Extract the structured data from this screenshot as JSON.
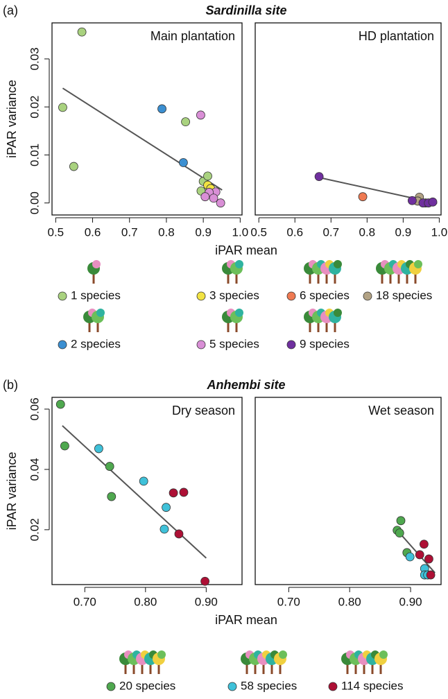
{
  "chart_data": [
    {
      "type": "scatter",
      "panel_label": "(a)",
      "site_title": "Sardinilla site",
      "title": "Main plantation",
      "xlabel": "iPAR mean",
      "ylabel": "iPAR variance",
      "xlim": [
        0.49,
        1.005
      ],
      "ylim": [
        -0.0025,
        0.0375
      ],
      "xticks": [
        0.5,
        0.6,
        0.7,
        0.8,
        0.9,
        {
          "value": 1.0,
          "label": "1.0"
        }
      ],
      "yticks": [
        {
          "value": 0,
          "label": "0.00"
        },
        0.01,
        0.02,
        0.03
      ],
      "series": [
        {
          "name": "1 species",
          "color": "#a9d27f",
          "x": [
            0.571,
            0.519,
            0.549,
            0.852,
            0.9,
            0.912,
            0.894
          ],
          "y": [
            0.0356,
            0.0199,
            0.0076,
            0.0169,
            0.0045,
            0.0056,
            0.0025
          ]
        },
        {
          "name": "2 species",
          "color": "#3b8fd1",
          "x": [
            0.788,
            0.846
          ],
          "y": [
            0.0196,
            0.0084
          ]
        },
        {
          "name": "3 species",
          "color": "#f2e343",
          "x": [
            0.912,
            0.92
          ],
          "y": [
            0.0037,
            0.003
          ]
        },
        {
          "name": "5 species",
          "color": "#d98fd6",
          "x": [
            0.893,
            0.934,
            0.916,
            0.905,
            0.928,
            0.947
          ],
          "y": [
            0.0183,
            0.0023,
            0.0022,
            0.0013,
            0.001,
            0.0
          ]
        }
      ],
      "trend": {
        "x": [
          0.519,
          0.951
        ],
        "y": [
          0.0239,
          0.0027
        ]
      }
    },
    {
      "type": "scatter",
      "title": "HD plantation",
      "xlim": [
        0.49,
        1.005
      ],
      "ylim": [
        -0.0025,
        0.0375
      ],
      "xticks": [
        0.5,
        0.6,
        0.7,
        0.8,
        0.9,
        {
          "value": 1.0,
          "label": "1.0"
        }
      ],
      "series": [
        {
          "name": "6 species",
          "color": "#ef7a52",
          "x": [
            0.788
          ],
          "y": [
            0.0013
          ]
        },
        {
          "name": "18 species",
          "color": "#b2a284",
          "x": [
            0.945,
            0.94,
            0.962
          ],
          "y": [
            0.0012,
            0.0004,
            0.0
          ]
        },
        {
          "name": "9 species",
          "color": "#6f2f9e",
          "x": [
            0.667,
            0.925,
            0.955,
            0.97,
            0.982
          ],
          "y": [
            0.0055,
            0.0005,
            0.0,
            0.0,
            0.0002
          ]
        }
      ],
      "trend": {
        "x": [
          0.667,
          0.994
        ],
        "y": [
          0.0053,
          -0.0001
        ]
      }
    },
    {
      "type": "scatter",
      "panel_label": "(b)",
      "site_title": "Anhembi site",
      "title": "Dry season",
      "xlabel": "iPAR mean",
      "ylabel": "iPAR variance",
      "xlim": [
        0.646,
        0.959
      ],
      "ylim": [
        0.0018,
        0.0639
      ],
      "xticks": [
        {
          "value": 0.7,
          "label": "0.70"
        },
        {
          "value": 0.8,
          "label": "0.80"
        },
        {
          "value": 0.9,
          "label": "0.90"
        }
      ],
      "yticks": [
        0.02,
        0.04,
        0.06
      ],
      "series": [
        {
          "name": "20 species",
          "color": "#4fa84f",
          "x": [
            0.66,
            0.667,
            0.741,
            0.744
          ],
          "y": [
            0.0616,
            0.0478,
            0.041,
            0.031
          ]
        },
        {
          "name": "58 species",
          "color": "#3fc1d9",
          "x": [
            0.723,
            0.797,
            0.834,
            0.831
          ],
          "y": [
            0.0469,
            0.0361,
            0.0274,
            0.0202
          ]
        },
        {
          "name": "114 species",
          "color": "#ad1035",
          "x": [
            0.846,
            0.863,
            0.855,
            0.898
          ],
          "y": [
            0.0322,
            0.0324,
            0.0186,
            0.0029
          ]
        }
      ],
      "trend": {
        "x": [
          0.663,
          0.9
        ],
        "y": [
          0.0545,
          0.0106
        ]
      }
    },
    {
      "type": "scatter",
      "title": "Wet season",
      "xlim": [
        0.645,
        0.95
      ],
      "ylim": [
        0.0018,
        0.0639
      ],
      "xticks": [
        {
          "value": 0.7,
          "label": "0.70"
        },
        {
          "value": 0.8,
          "label": "0.80"
        },
        {
          "value": 0.9,
          "label": "0.90"
        }
      ],
      "series": [
        {
          "name": "20 species",
          "color": "#4fa84f",
          "x": [
            0.878,
            0.882,
            0.884,
            0.894
          ],
          "y": [
            0.0198,
            0.0189,
            0.023,
            0.0124
          ]
        },
        {
          "name": "58 species",
          "color": "#3fc1d9",
          "x": [
            0.899,
            0.923,
            0.923,
            0.928
          ],
          "y": [
            0.011,
            0.0071,
            0.005,
            0.005
          ]
        },
        {
          "name": "114 species",
          "color": "#ad1035",
          "x": [
            0.922,
            0.915,
            0.93,
            0.933
          ],
          "y": [
            0.0152,
            0.0117,
            0.0103,
            0.005
          ]
        }
      ],
      "trend": {
        "x": [
          0.875,
          0.94
        ],
        "y": [
          0.0205,
          0.0057
        ]
      }
    }
  ]
}
